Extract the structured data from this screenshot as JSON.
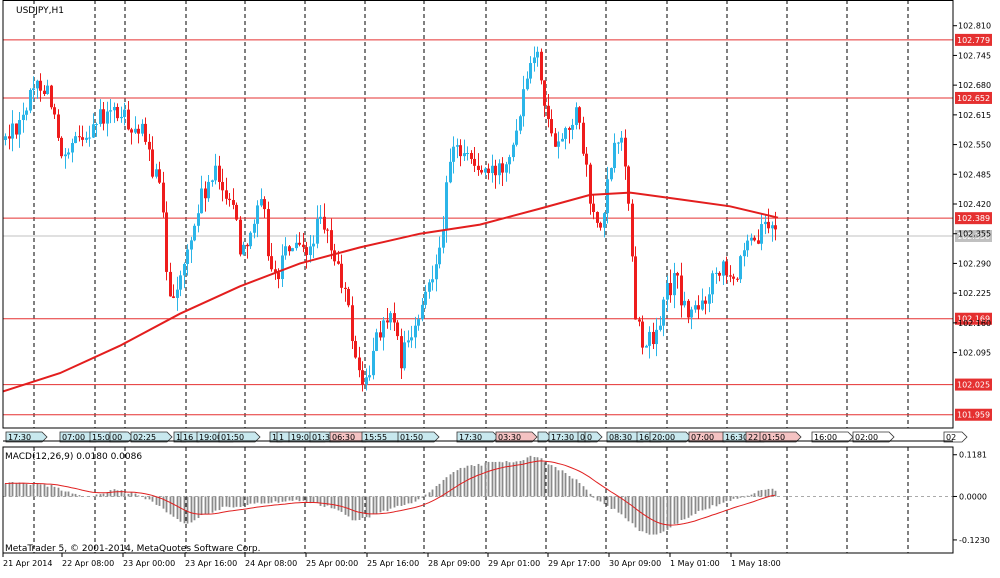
{
  "symbol_label": "USDJPY,H1",
  "indicator_label": "MACD(12,26,9) 0.0180 0.0086",
  "copyright": "MetaTrader 5, © 2001-2014, MetaQuotes Software Corp.",
  "colors": {
    "bull_candle": "#2bb5e8",
    "bear_candle": "#ee1c1c",
    "level_line": "#e53030",
    "moving_average": "#e31e1e",
    "macd_signal": "#e02020",
    "macd_histogram": "#8a8a8a",
    "bid_line": "#c0c0c0",
    "event_flag_blue": "#c8e8ee",
    "event_flag_red": "#f4c2c2"
  },
  "price_axis": {
    "ticks": [
      "102.810",
      "102.745",
      "102.680",
      "102.615",
      "102.550",
      "102.485",
      "102.420",
      "102.355",
      "102.290",
      "102.225",
      "102.160",
      "102.095"
    ],
    "levels": [
      "102.779",
      "102.652",
      "102.389",
      "102.169",
      "102.025",
      "101.959"
    ],
    "current_price": "102.350"
  },
  "macd_axis": {
    "ticks": [
      "0.1181",
      "0.0000",
      "-0.1230"
    ]
  },
  "time_axis": [
    "21 Apr 2014",
    "22 Apr 08:00",
    "23 Apr 00:00",
    "23 Apr 16:00",
    "24 Apr 08:00",
    "25 Apr 00:00",
    "25 Apr 16:00",
    "28 Apr 09:00",
    "29 Apr 01:00",
    "29 Apr 17:00",
    "30 Apr 09:00",
    "1 May 01:00",
    "1 May 18:00"
  ],
  "event_flags": [
    {
      "label": "17:30",
      "type": "blue"
    },
    {
      "label": "07:00",
      "type": "blue"
    },
    {
      "label": "15:07",
      "type": "blue"
    },
    {
      "label": "00",
      "type": "blue"
    },
    {
      "label": "02:25",
      "type": "blue"
    },
    {
      "label": "1",
      "type": "blue"
    },
    {
      "label": "16",
      "type": "blue"
    },
    {
      "label": "19:00",
      "type": "blue"
    },
    {
      "label": "01:50",
      "type": "blue"
    },
    {
      "label": "1",
      "type": "blue"
    },
    {
      "label": "1",
      "type": "blue"
    },
    {
      "label": "19:00",
      "type": "blue"
    },
    {
      "label": "01:3",
      "type": "blue"
    },
    {
      "label": "06:30",
      "type": "red"
    },
    {
      "label": "15:55",
      "type": "blue"
    },
    {
      "label": "01:50",
      "type": "blue"
    },
    {
      "label": "17:30",
      "type": "blue"
    },
    {
      "label": "03:30",
      "type": "red"
    },
    {
      "label": "",
      "type": "blue"
    },
    {
      "label": "17:30",
      "type": "blue"
    },
    {
      "label": "0",
      "type": "blue"
    },
    {
      "label": "0",
      "type": "blue"
    },
    {
      "label": "08:30",
      "type": "blue"
    },
    {
      "label": "16:",
      "type": "blue"
    },
    {
      "label": "20:00",
      "type": "blue"
    },
    {
      "label": "07:00",
      "type": "red"
    },
    {
      "label": "16:30",
      "type": "blue"
    },
    {
      "label": "22",
      "type": "red"
    },
    {
      "label": "01:50",
      "type": "red"
    },
    {
      "label": "16:00",
      "type": "white"
    },
    {
      "label": "02:00",
      "type": "white"
    },
    {
      "label": "02",
      "type": "white"
    }
  ]
}
